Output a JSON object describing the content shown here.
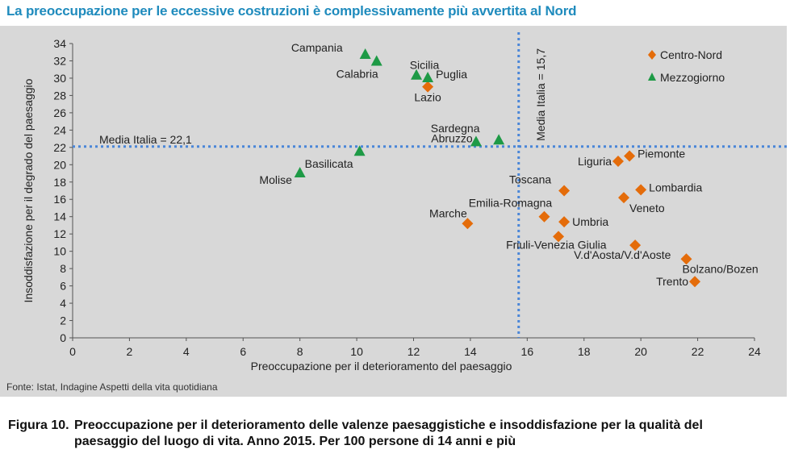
{
  "top_title": "La preoccupazione per le eccessive costruzioni è complessivamente più avvertita al Nord",
  "source": "Fonte: Istat, Indagine Aspetti della vita quotidiana",
  "caption": {
    "label": "Figura 10.",
    "line1": "Preoccupazione per il deterioramento delle valenze paesaggistiche e insoddisfazione per la qualità del",
    "line2": "paesaggio del luogo di vita. Anno 2015. Per 100 persone di 14 anni e più"
  },
  "colors": {
    "centro_nord": "#e46c0a",
    "mezzogiorno": "#1e9a46",
    "reference_line": "#4a86d8",
    "panel": "#d8d8d8"
  },
  "chart_data": {
    "type": "scatter",
    "xlabel": "Preoccupazione per il deterioramento del paesaggio",
    "ylabel": "Insoddisfazione per il degrado del paesaggio",
    "xlim": [
      0,
      24
    ],
    "ylim": [
      0,
      34
    ],
    "x_ticks": [
      "0",
      "2",
      "4",
      "6",
      "8",
      "10",
      "12",
      "14",
      "16",
      "18",
      "20",
      "22",
      "24"
    ],
    "y_ticks": [
      "0",
      "2",
      "4",
      "6",
      "8",
      "10",
      "12",
      "14",
      "16",
      "18",
      "20",
      "22",
      "24",
      "26",
      "28",
      "30",
      "32",
      "34"
    ],
    "legend_position": "top-right",
    "reference_lines": [
      {
        "axis": "y",
        "value": 22.1,
        "label": "Media Italia = 22,1"
      },
      {
        "axis": "x",
        "value": 15.7,
        "label": "Media Italia = 15,7"
      }
    ],
    "series": [
      {
        "name": "Centro-Nord",
        "marker": "diamond",
        "points": [
          {
            "label": "Lazio",
            "x": 12.5,
            "y": 29.0
          },
          {
            "label": "Marche",
            "x": 13.9,
            "y": 13.2
          },
          {
            "label": "Toscana",
            "x": 17.3,
            "y": 17.0
          },
          {
            "label": "Emilia-Romagna",
            "x": 16.6,
            "y": 14.0
          },
          {
            "label": "Umbria",
            "x": 17.3,
            "y": 13.4
          },
          {
            "label": "Friuli-Venezia Giulia",
            "x": 17.1,
            "y": 11.7
          },
          {
            "label": "Liguria",
            "x": 19.2,
            "y": 20.4
          },
          {
            "label": "Piemonte",
            "x": 19.6,
            "y": 21.0
          },
          {
            "label": "Lombardia",
            "x": 20.0,
            "y": 17.1
          },
          {
            "label": "Veneto",
            "x": 19.4,
            "y": 16.2
          },
          {
            "label": "V.d'Aosta/V.d'Aoste",
            "x": 19.8,
            "y": 10.7
          },
          {
            "label": "Bolzano/Bozen",
            "x": 21.6,
            "y": 9.1
          },
          {
            "label": "Trento",
            "x": 21.9,
            "y": 6.5
          }
        ]
      },
      {
        "name": "Mezzogiorno",
        "marker": "triangle",
        "points": [
          {
            "label": "Campania",
            "x": 10.3,
            "y": 32.7
          },
          {
            "label": "Calabria",
            "x": 10.7,
            "y": 31.9
          },
          {
            "label": "Sicilia",
            "x": 12.1,
            "y": 30.3
          },
          {
            "label": "Puglia",
            "x": 12.5,
            "y": 30.0
          },
          {
            "label": "Sardegna",
            "x": 15.0,
            "y": 22.8
          },
          {
            "label": "Abruzzo",
            "x": 14.2,
            "y": 22.6
          },
          {
            "label": "Basilicata",
            "x": 10.1,
            "y": 21.5
          },
          {
            "label": "Molise",
            "x": 8.0,
            "y": 19.0
          }
        ]
      }
    ]
  }
}
